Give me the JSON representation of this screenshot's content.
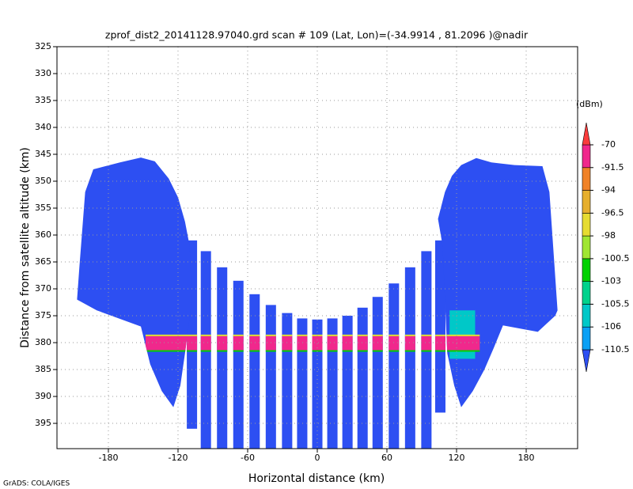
{
  "chart_data": {
    "type": "scan",
    "title": "zprof_dist2_20141128.97040.grd  scan # 109  (Lat, Lon)=(-34.9914 , 81.2096 )@nadir",
    "xlabel": "Horizontal distance (km)",
    "ylabel": "Distance from satellite altitude (km)",
    "credit": "GrADS: COLA/IGES",
    "xlim": [
      -224.3,
      224.3
    ],
    "ylim": [
      325,
      399.7
    ],
    "y_inverted": true,
    "xticks": [
      -180,
      -120,
      -60,
      0,
      60,
      120,
      180
    ],
    "yticks": [
      325,
      330,
      335,
      340,
      345,
      350,
      355,
      360,
      365,
      370,
      375,
      380,
      385,
      390,
      395
    ],
    "grid": true,
    "colorbar": {
      "label": "(dBm)",
      "levels": [
        -110.5,
        -106,
        -105.5,
        -103,
        -100.5,
        -98,
        -96.5,
        -94,
        -91.5,
        -70
      ],
      "colors": [
        "#2d4ff2",
        "#0aa0f5",
        "#00c8c8",
        "#00d28c",
        "#00d200",
        "#a0e632",
        "#e6dc32",
        "#e6af2d",
        "#f08228",
        "#f0288c",
        "#fa3c3c"
      ]
    },
    "beams": [
      {
        "x": -108,
        "top": 361,
        "bottom": 396
      },
      {
        "x": -96,
        "top": 363,
        "bottom": 399.7
      },
      {
        "x": -82,
        "top": 366,
        "bottom": 399.7
      },
      {
        "x": -68,
        "top": 368.5,
        "bottom": 399.7
      },
      {
        "x": -54,
        "top": 371,
        "bottom": 399.7
      },
      {
        "x": -40,
        "top": 373,
        "bottom": 399.7
      },
      {
        "x": -26,
        "top": 374.5,
        "bottom": 399.7
      },
      {
        "x": -13,
        "top": 375.5,
        "bottom": 399.7
      },
      {
        "x": 0,
        "top": 375.7,
        "bottom": 399.7
      },
      {
        "x": 13,
        "top": 375.5,
        "bottom": 399.7
      },
      {
        "x": 26,
        "top": 375,
        "bottom": 399.7
      },
      {
        "x": 39,
        "top": 373.5,
        "bottom": 399.7
      },
      {
        "x": 52,
        "top": 371.5,
        "bottom": 399.7
      },
      {
        "x": 66,
        "top": 369,
        "bottom": 399.7
      },
      {
        "x": 80,
        "top": 366,
        "bottom": 399.7
      },
      {
        "x": 94,
        "top": 363,
        "bottom": 399.7
      },
      {
        "x": 106,
        "top": 361,
        "bottom": 393
      }
    ],
    "blocks": [
      {
        "x": [
          -193,
          -170,
          -152,
          -140,
          -128,
          -120,
          -114,
          -110,
          -108,
          -114,
          -118,
          -124,
          -134,
          -144,
          -152,
          -190,
          -207,
          -205,
          -200
        ],
        "y": [
          347.8,
          346.5,
          345.6,
          346.3,
          349.5,
          353,
          357.5,
          362,
          372,
          382,
          388,
          392,
          389,
          384,
          377,
          374,
          372,
          366,
          352
        ]
      },
      {
        "x": [
          137,
          150,
          170,
          194,
          200,
          207,
          205,
          190,
          160,
          152,
          144,
          134,
          124,
          118,
          112,
          110,
          108,
          104,
          110,
          116,
          124
        ],
        "y": [
          345.7,
          346.5,
          347,
          347.2,
          352,
          374,
          375,
          378,
          376.8,
          381,
          385,
          389,
          392,
          388,
          382,
          372,
          362,
          357,
          352,
          349,
          347
        ]
      }
    ],
    "patches": [
      {
        "x": [
          114,
          136
        ],
        "top": 374,
        "bottom": 383,
        "color": "#00c8c8"
      }
    ],
    "band": {
      "x": [
        -148,
        140
      ],
      "top": 378.8,
      "bottom": 381.4,
      "color": "#f0288c",
      "edge_color": "#e6dc32",
      "lower_edge_color": "#00d200"
    }
  }
}
